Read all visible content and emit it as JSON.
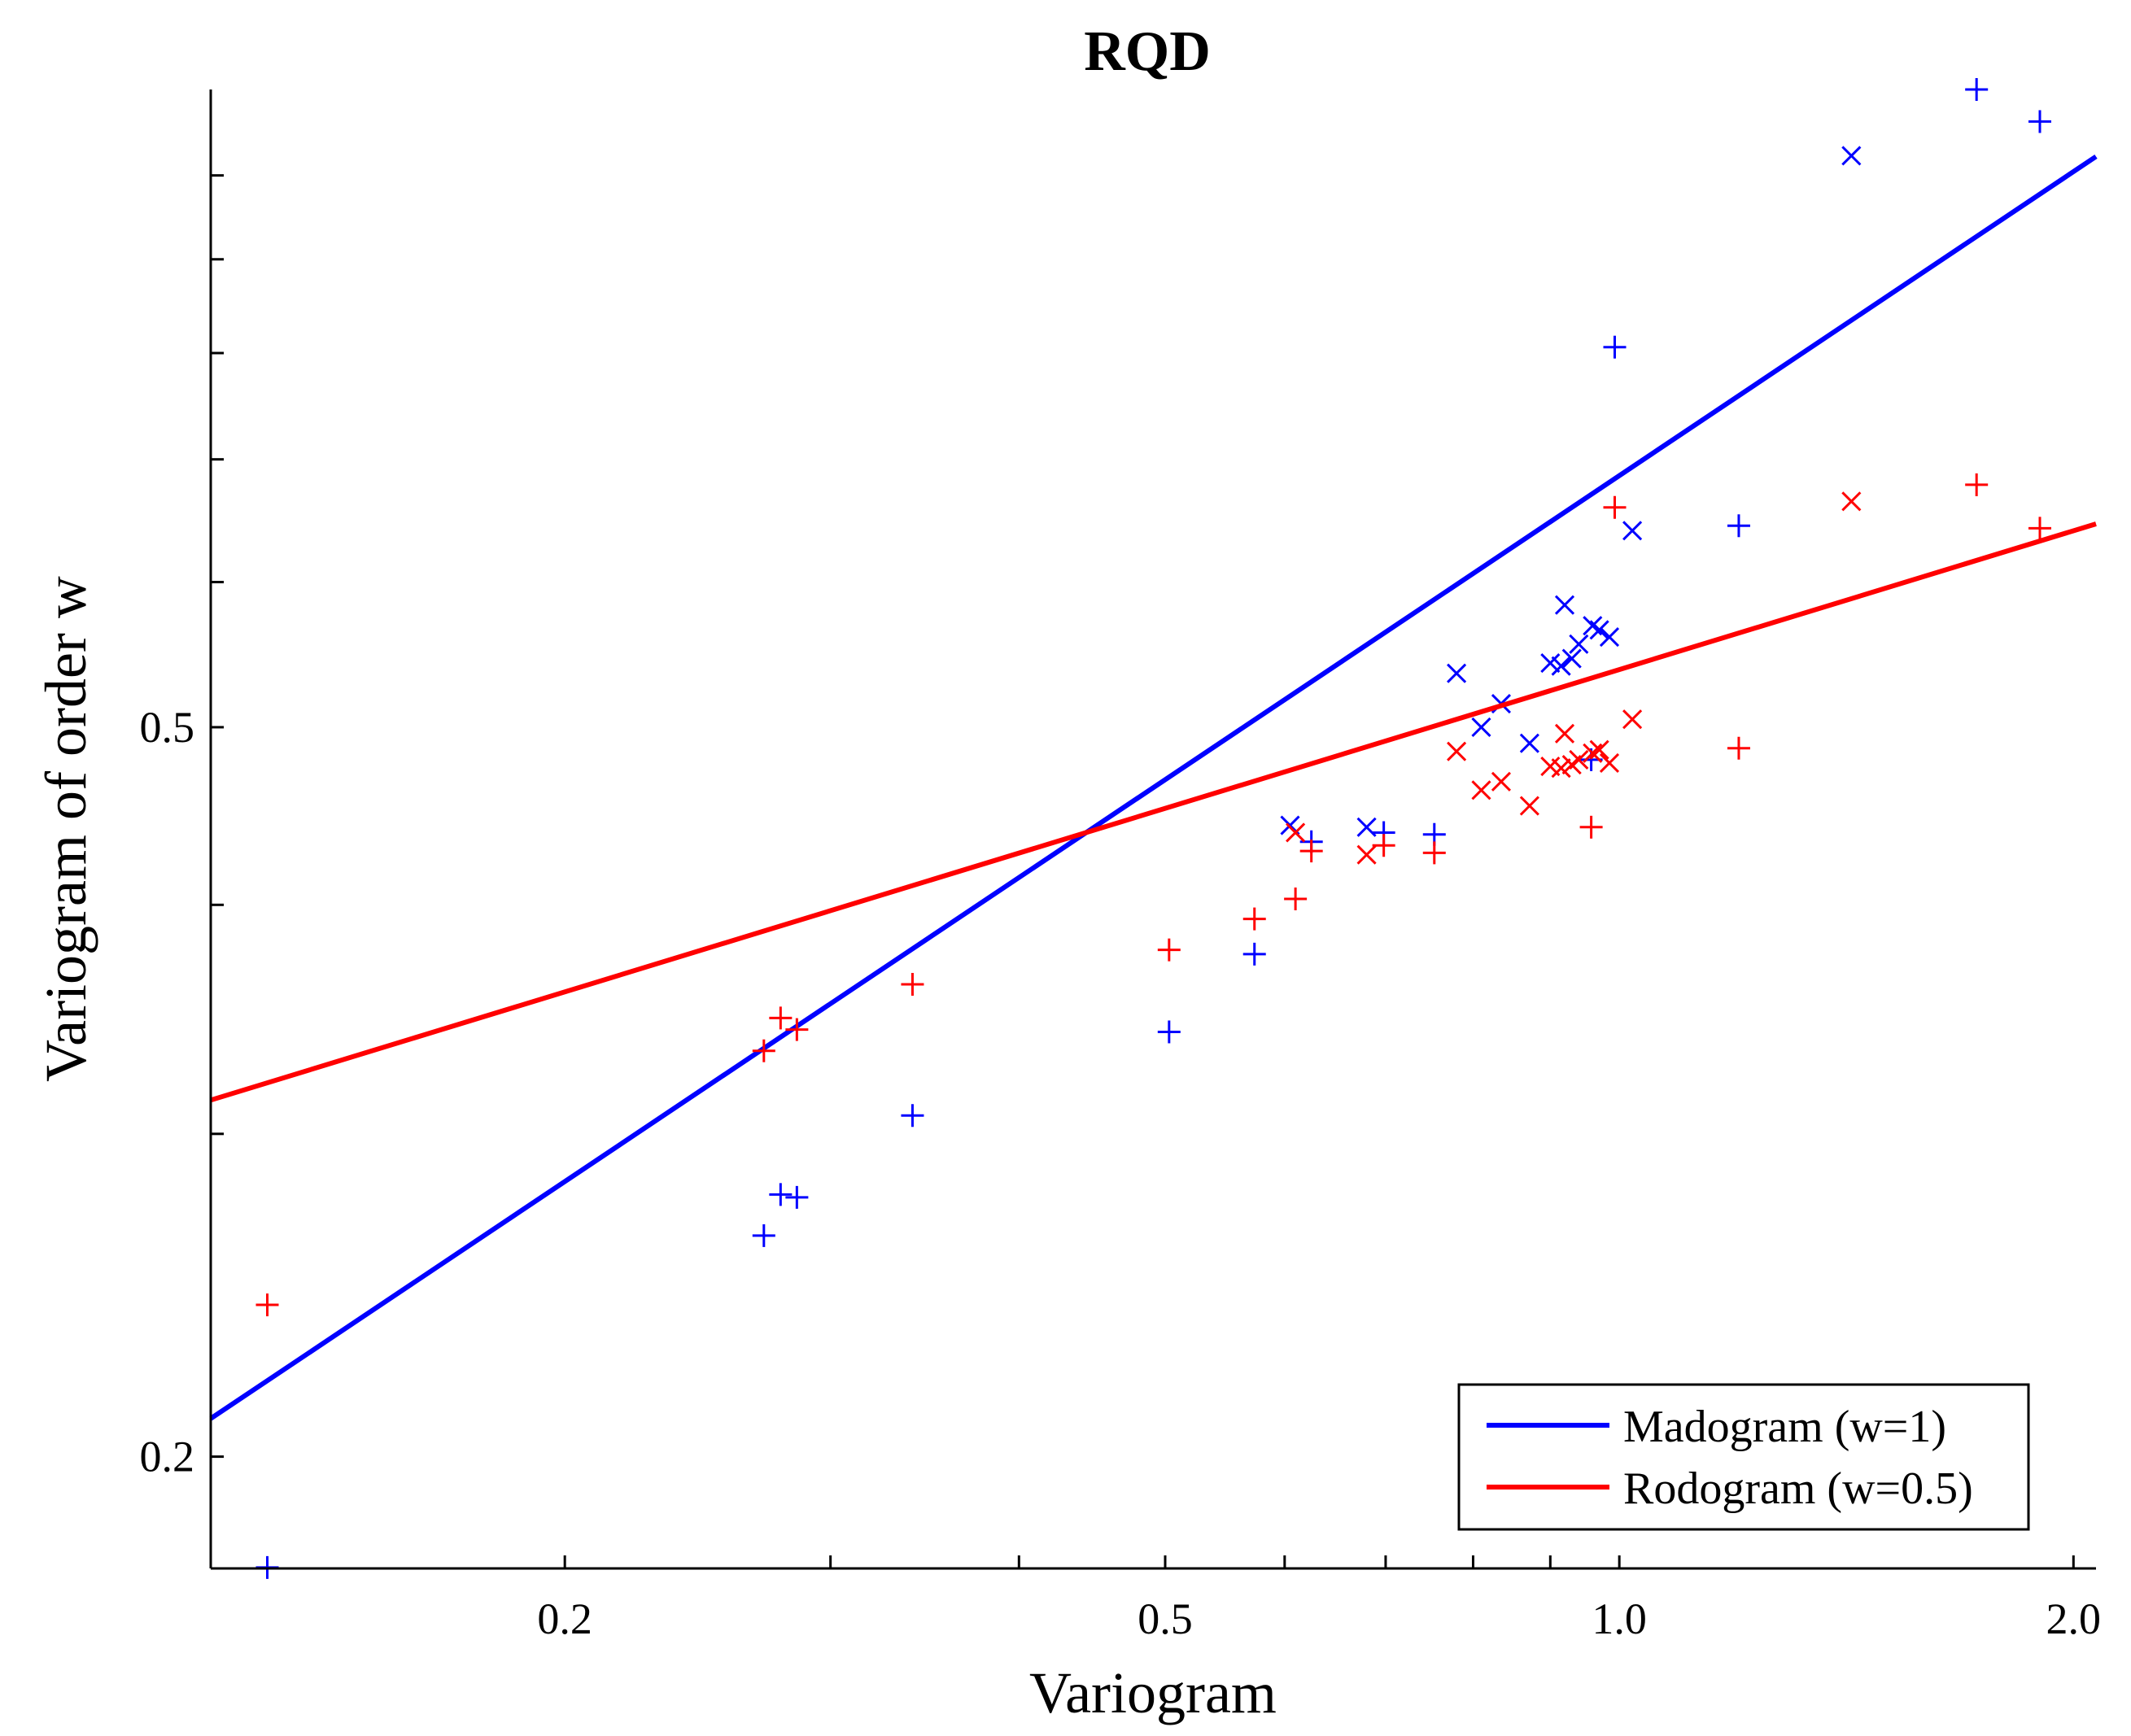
{
  "chart_data": {
    "type": "scatter",
    "title": "RQD",
    "xlabel": "Variogram",
    "ylabel": "Variogram of order w",
    "xscale": "log",
    "yscale": "log",
    "xlim": [
      0.1165,
      2.07
    ],
    "ylim": [
      0.1738,
      1.114
    ],
    "x_ticks": [
      {
        "value": 0.2,
        "label": "0.2"
      },
      {
        "value": 0.3,
        "label": ""
      },
      {
        "value": 0.4,
        "label": ""
      },
      {
        "value": 0.5,
        "label": "0.5"
      },
      {
        "value": 0.6,
        "label": ""
      },
      {
        "value": 0.7,
        "label": ""
      },
      {
        "value": 0.8,
        "label": ""
      },
      {
        "value": 0.9,
        "label": ""
      },
      {
        "value": 1.0,
        "label": "1.0"
      },
      {
        "value": 2.0,
        "label": "2.0"
      }
    ],
    "y_ticks": [
      {
        "value": 0.2,
        "label": "0.2"
      },
      {
        "value": 0.3,
        "label": ""
      },
      {
        "value": 0.4,
        "label": ""
      },
      {
        "value": 0.5,
        "label": "0.5"
      },
      {
        "value": 0.6,
        "label": ""
      },
      {
        "value": 0.7,
        "label": ""
      },
      {
        "value": 0.8,
        "label": ""
      },
      {
        "value": 0.9,
        "label": ""
      },
      {
        "value": 1.0,
        "label": ""
      }
    ],
    "legend": {
      "position": "bottom-right"
    },
    "series": [
      {
        "name": "Madogram (w=1)",
        "color": "#0000ff",
        "fit_line": {
          "x": [
            0.1165,
            2.07
          ],
          "y": [
            0.2098,
            1.024
          ]
        },
        "plus_points": [
          [
            0.127,
            0.174
          ],
          [
            0.271,
            0.264
          ],
          [
            0.278,
            0.278
          ],
          [
            0.285,
            0.277
          ],
          [
            0.34,
            0.307
          ],
          [
            0.503,
            0.341
          ],
          [
            0.573,
            0.376
          ],
          [
            0.625,
            0.433
          ],
          [
            0.698,
            0.438
          ],
          [
            0.754,
            0.437
          ],
          [
            0.958,
            0.48
          ],
          [
            0.993,
            0.806
          ],
          [
            1.2,
            0.644
          ],
          [
            1.725,
            1.114
          ],
          [
            1.9,
            1.07
          ]
        ],
        "x_points": [
          [
            0.605,
            0.442
          ],
          [
            0.68,
            0.441
          ],
          [
            0.78,
            0.535
          ],
          [
            0.81,
            0.5
          ],
          [
            0.835,
            0.515
          ],
          [
            0.872,
            0.49
          ],
          [
            0.9,
            0.542
          ],
          [
            0.915,
            0.54
          ],
          [
            0.92,
            0.583
          ],
          [
            0.93,
            0.545
          ],
          [
            0.94,
            0.555
          ],
          [
            0.96,
            0.568
          ],
          [
            0.97,
            0.565
          ],
          [
            0.985,
            0.56
          ],
          [
            1.02,
            0.64
          ],
          [
            1.425,
            1.025
          ]
        ]
      },
      {
        "name": "Rodogram (w=0.5)",
        "color": "#ff0000",
        "fit_line": {
          "x": [
            0.1165,
            2.07
          ],
          "y": [
            0.313,
            0.6455
          ]
        },
        "plus_points": [
          [
            0.127,
            0.242
          ],
          [
            0.271,
            0.333
          ],
          [
            0.278,
            0.347
          ],
          [
            0.285,
            0.342
          ],
          [
            0.34,
            0.362
          ],
          [
            0.503,
            0.378
          ],
          [
            0.573,
            0.393
          ],
          [
            0.61,
            0.403
          ],
          [
            0.625,
            0.428
          ],
          [
            0.698,
            0.431
          ],
          [
            0.754,
            0.427
          ],
          [
            0.958,
            0.441
          ],
          [
            0.993,
            0.659
          ],
          [
            1.2,
            0.487
          ],
          [
            1.725,
            0.678
          ],
          [
            1.9,
            0.642
          ]
        ],
        "x_points": [
          [
            0.61,
            0.438
          ],
          [
            0.68,
            0.426
          ],
          [
            0.78,
            0.485
          ],
          [
            0.81,
            0.462
          ],
          [
            0.835,
            0.467
          ],
          [
            0.872,
            0.453
          ],
          [
            0.9,
            0.476
          ],
          [
            0.915,
            0.475
          ],
          [
            0.92,
            0.496
          ],
          [
            0.93,
            0.477
          ],
          [
            0.94,
            0.48
          ],
          [
            0.96,
            0.484
          ],
          [
            0.97,
            0.486
          ],
          [
            0.985,
            0.478
          ],
          [
            1.02,
            0.505
          ],
          [
            1.425,
            0.664
          ]
        ]
      }
    ]
  }
}
